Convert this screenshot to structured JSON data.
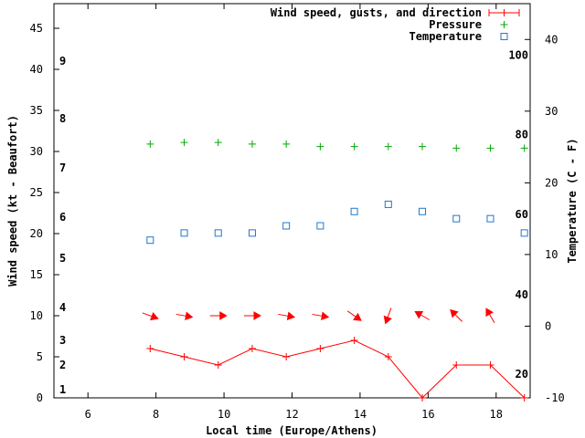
{
  "chart_data": {
    "type": "line",
    "xlabel": "Local time (Europe/Athens)",
    "ylabel": "Wind speed (kt - Beaufort)",
    "y2label": "Temperature (C - F)",
    "xlim": [
      5,
      19
    ],
    "ylim": [
      0,
      48
    ],
    "y2lim": [
      -10,
      45
    ],
    "x_ticks": [
      6,
      8,
      10,
      12,
      14,
      16,
      18
    ],
    "y_ticks": [
      0,
      5,
      10,
      15,
      20,
      25,
      30,
      35,
      40,
      45
    ],
    "y2_ticks": [
      -10,
      0,
      10,
      20,
      30,
      40
    ],
    "beaufort_labels": [
      {
        "label": "1",
        "y": 1
      },
      {
        "label": "2",
        "y": 4
      },
      {
        "label": "3",
        "y": 7
      },
      {
        "label": "4",
        "y": 11
      },
      {
        "label": "5",
        "y": 17
      },
      {
        "label": "6",
        "y": 22
      },
      {
        "label": "7",
        "y": 28
      },
      {
        "label": "8",
        "y": 34
      },
      {
        "label": "9",
        "y": 41
      }
    ],
    "fahrenheit_labels": [
      {
        "label": "20",
        "temp_c": -6.7
      },
      {
        "label": "40",
        "temp_c": 4.4
      },
      {
        "label": "60",
        "temp_c": 15.6
      },
      {
        "label": "80",
        "temp_c": 26.7
      },
      {
        "label": "100",
        "temp_c": 37.8
      }
    ],
    "legend_position": "top-right",
    "grid": false,
    "series": [
      {
        "name": "Wind speed, gusts, and direction",
        "color": "#ff0000",
        "marker": "plus-line",
        "x": [
          7.83,
          8.83,
          9.83,
          10.83,
          11.83,
          12.83,
          13.83,
          14.83,
          15.83,
          16.83,
          17.83,
          18.83
        ],
        "y": [
          6,
          5,
          4,
          6,
          5,
          6,
          7,
          5,
          0,
          4,
          4,
          0
        ]
      },
      {
        "name": "Pressure",
        "color": "#00aa00",
        "marker": "plus",
        "x": [
          7.83,
          8.83,
          9.83,
          10.83,
          11.83,
          12.83,
          13.83,
          14.83,
          15.83,
          16.83,
          17.83,
          18.83
        ],
        "y": [
          30.9,
          31.1,
          31.1,
          30.9,
          30.9,
          30.6,
          30.6,
          30.6,
          30.6,
          30.4,
          30.4,
          30.4
        ]
      },
      {
        "name": "Temperature",
        "color": "#2277cc",
        "marker": "square",
        "x": [
          7.83,
          8.83,
          9.83,
          10.83,
          11.83,
          12.83,
          13.83,
          14.83,
          15.83,
          16.83,
          17.83,
          18.83
        ],
        "y": [
          12,
          13,
          13,
          13,
          14,
          14,
          16,
          17,
          16,
          15,
          15,
          13
        ]
      }
    ],
    "wind_direction": {
      "color": "#ff0000",
      "y_level": 10,
      "x": [
        7.83,
        8.83,
        9.83,
        10.83,
        11.83,
        12.83,
        13.83,
        14.83,
        15.83,
        16.83,
        17.83
      ],
      "direction_deg": [
        110,
        100,
        90,
        90,
        100,
        100,
        125,
        200,
        300,
        315,
        330
      ]
    }
  }
}
